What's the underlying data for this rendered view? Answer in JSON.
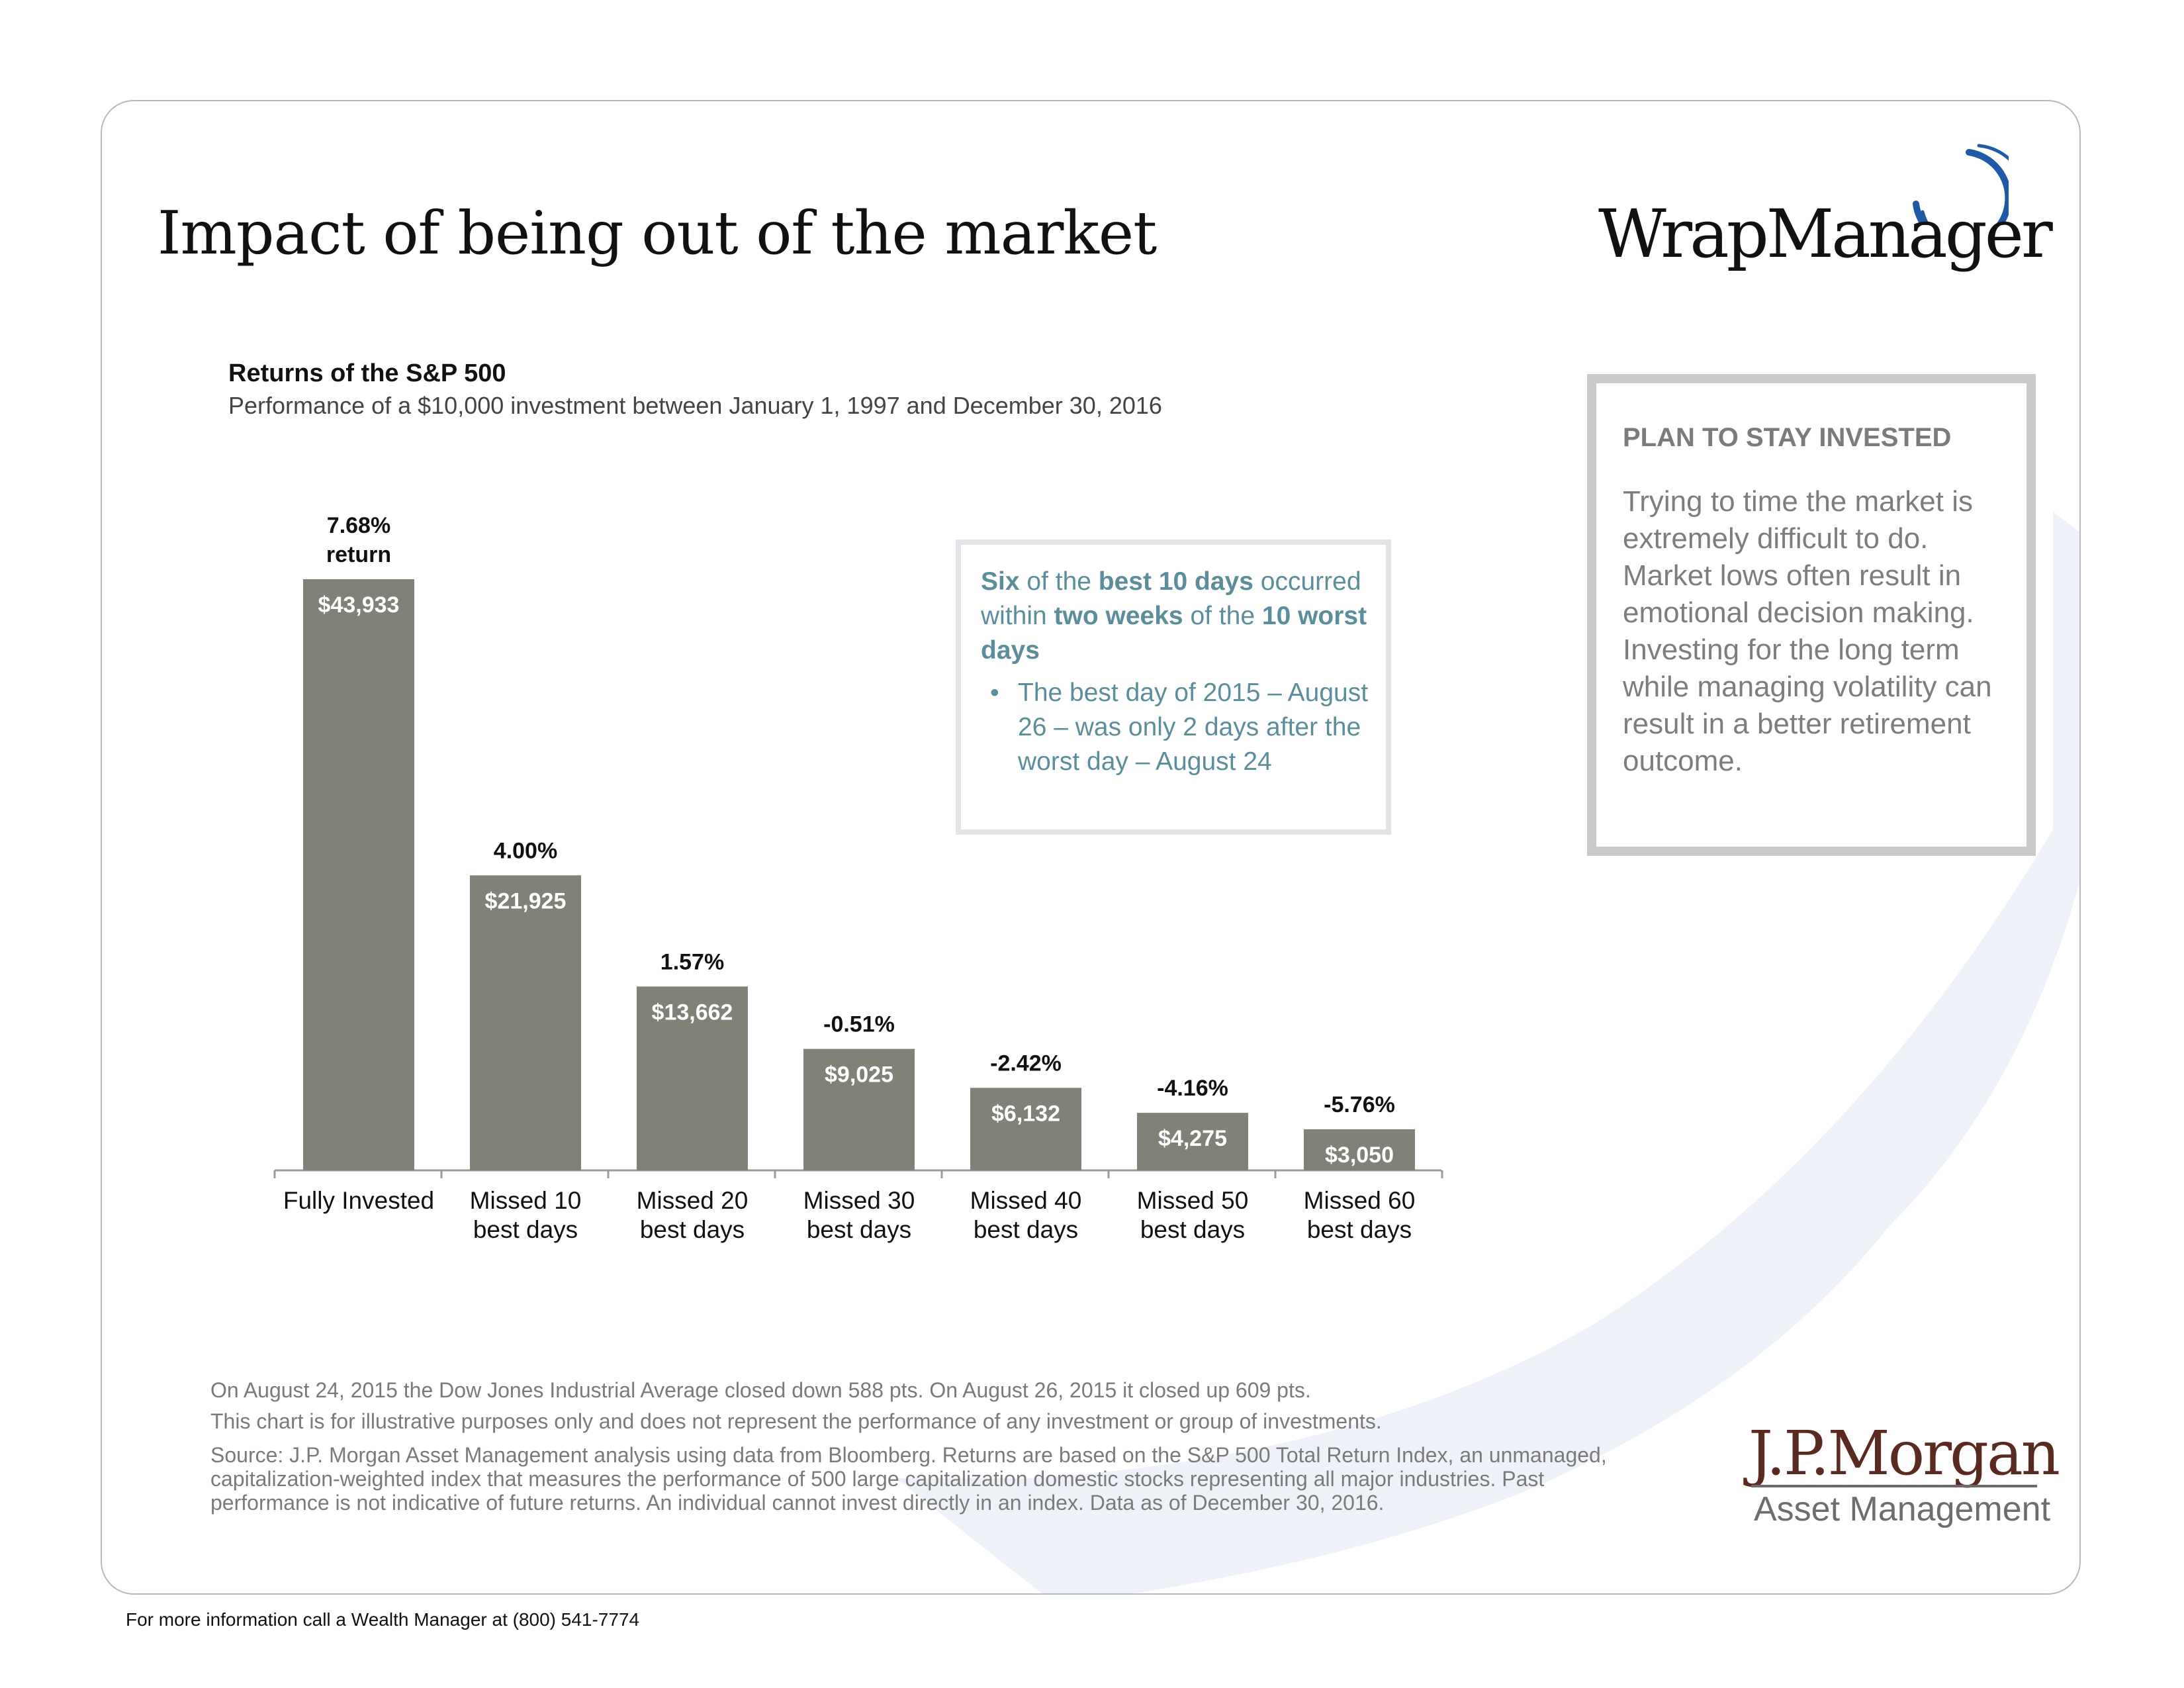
{
  "page": {
    "title": "Impact of being out of the market",
    "footer": "For more information call a Wealth Manager at (800) 541-7774"
  },
  "logos": {
    "wrapmanager": "WrapManager",
    "jpmorgan_name": "J.P.Morgan",
    "jpmorgan_sub": "Asset Management"
  },
  "colors": {
    "bar": "#808278",
    "bar_label": "#ffffff",
    "callout_text": "#5b8d9b",
    "swoosh": "#e8edf5",
    "logo_ring": "#1f5aa6"
  },
  "callout": {
    "line1_a": "Six",
    "line1_b": " of the ",
    "line1_c": "best 10 days",
    "line1_d": " occurred within ",
    "line1_e": "two weeks",
    "line1_f": " of the ",
    "line1_g": "10 worst days",
    "bullet": "The best day of 2015 – August 26 – was only 2 days after the worst day – August 24"
  },
  "side_panel": {
    "heading": "PLAN TO STAY INVESTED",
    "body": "Trying to time the market is extremely difficult to do. Market lows often result in emotional decision making. Investing for the long term while managing volatility can result in a better retirement outcome."
  },
  "notes": {
    "line1": "On August 24, 2015 the Dow Jones Industrial Average closed down 588 pts. On August 26, 2015 it closed up 609 pts.",
    "line2": "This chart is for illustrative purposes only and does not represent the performance of any investment or group of investments.",
    "source": "Source: J.P. Morgan Asset Management analysis using data from Bloomberg. Returns are based on the S&P 500 Total Return Index, an unmanaged, capitalization-weighted index that measures the performance of 500 large capitalization domestic stocks representing all major industries. Past performance is not indicative of future returns. An individual cannot invest directly in an index. Data as of December 30, 2016."
  },
  "chart_data": {
    "type": "bar",
    "title": "Returns of the S&P 500",
    "subtitle": "Performance of a $10,000 investment between January 1, 1997 and December 30, 2016",
    "categories": [
      [
        "Fully Invested"
      ],
      [
        "Missed 10",
        "best days"
      ],
      [
        "Missed 20",
        "best days"
      ],
      [
        "Missed 30",
        "best days"
      ],
      [
        "Missed 40",
        "best days"
      ],
      [
        "Missed 50",
        "best days"
      ],
      [
        "Missed 60",
        "best days"
      ]
    ],
    "values": [
      43933,
      21925,
      13662,
      9025,
      6132,
      4275,
      3050
    ],
    "value_labels": [
      "$43,933",
      "$21,925",
      "$13,662",
      "$9,025",
      "$6,132",
      "$4,275",
      "$3,050"
    ],
    "return_labels": [
      [
        "7.68%",
        "return"
      ],
      [
        "4.00%"
      ],
      [
        "1.57%"
      ],
      [
        "-0.51%"
      ],
      [
        "-2.42%"
      ],
      [
        "-4.16%"
      ],
      [
        "-5.76%"
      ]
    ],
    "ylim": [
      0,
      43933
    ],
    "grid": false,
    "legend": "none",
    "xlabel": "",
    "ylabel": ""
  }
}
